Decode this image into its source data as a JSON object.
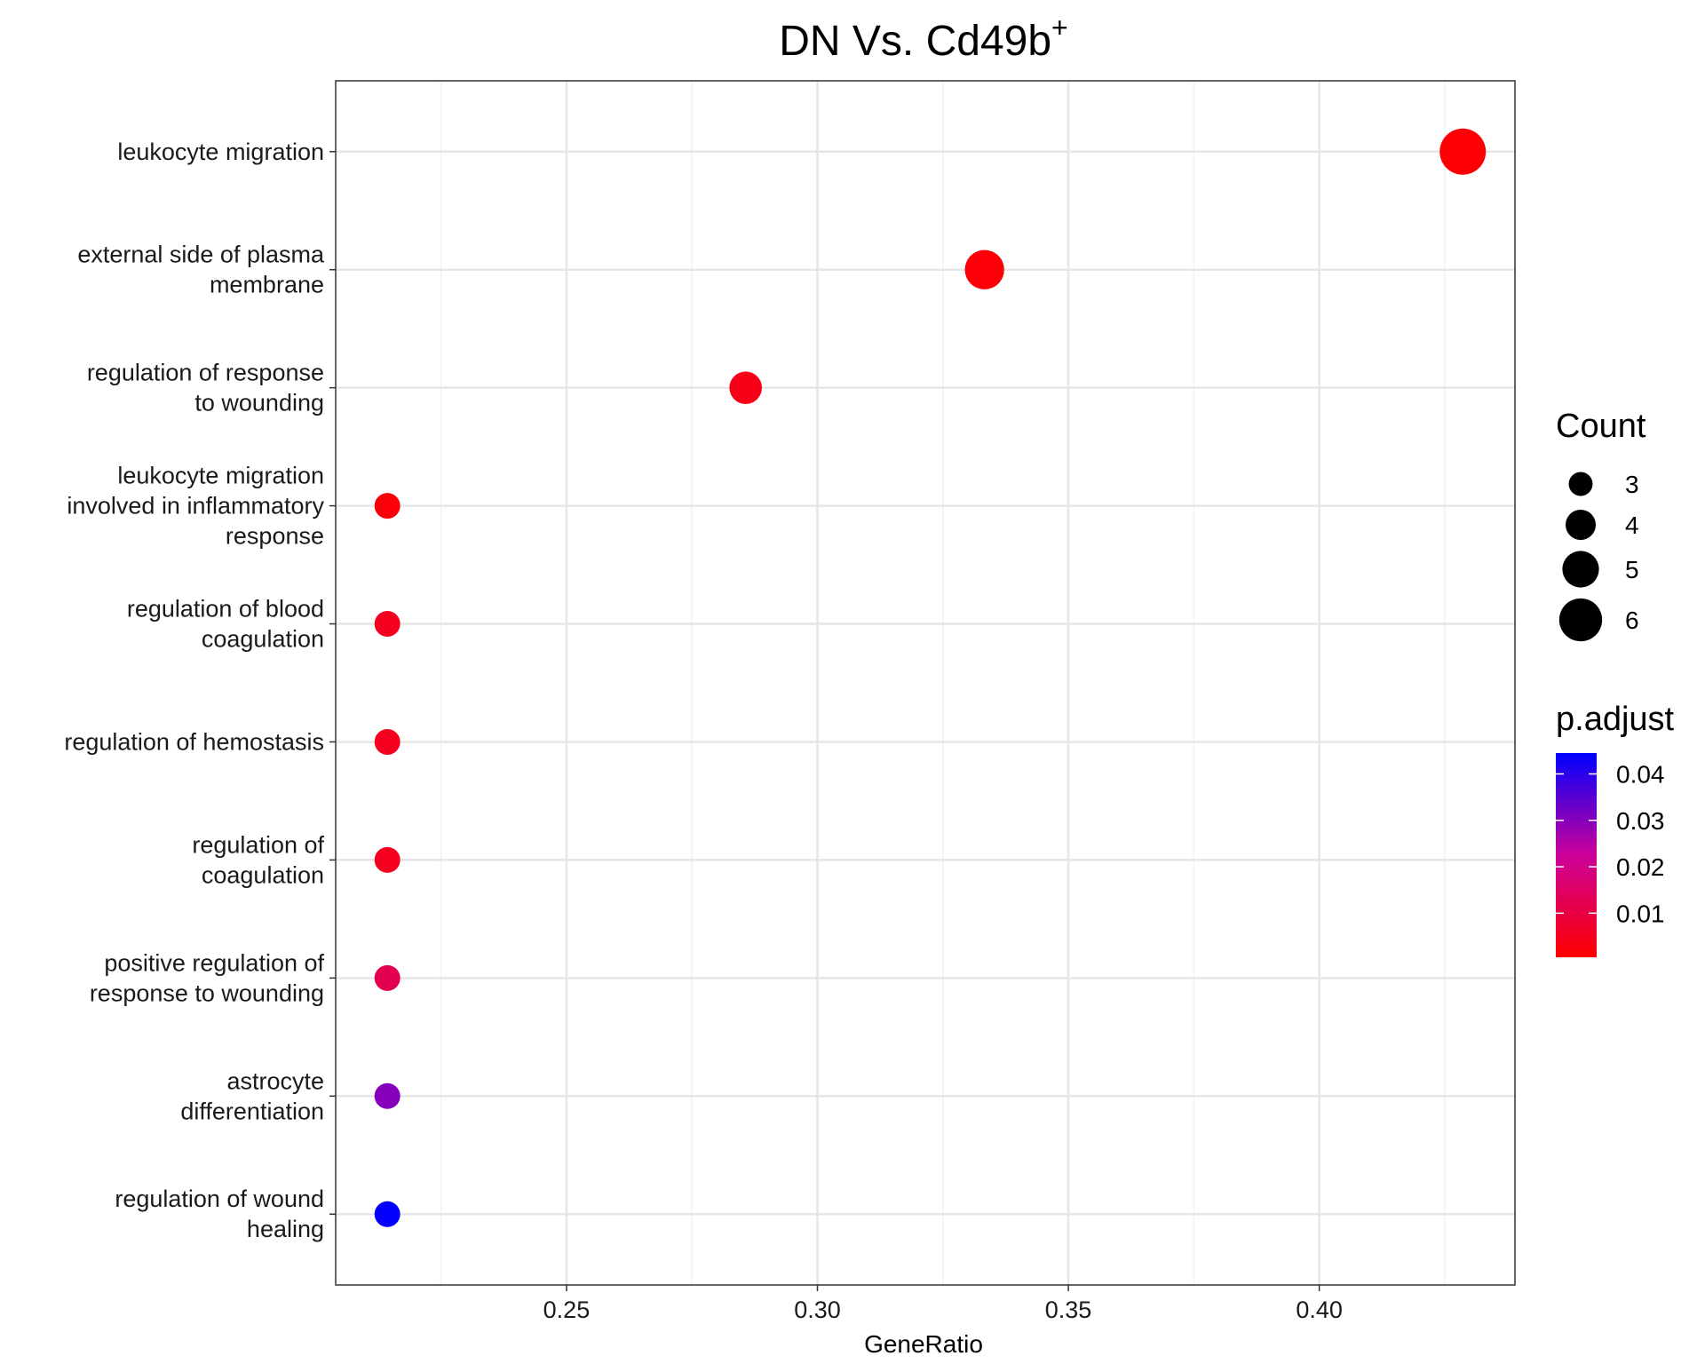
{
  "chart_data": {
    "type": "scatter",
    "title": "DN Vs. Cd49b",
    "title_superscript": "+",
    "xlabel": "GeneRatio",
    "ylabel": "",
    "xlim": [
      0.204,
      0.439
    ],
    "x_ticks": [
      0.25,
      0.3,
      0.35,
      0.4
    ],
    "x_tick_labels": [
      "0.25",
      "0.30",
      "0.35",
      "0.40"
    ],
    "grid": true,
    "categories": [
      "leukocyte migration",
      "external side of plasma membrane",
      "regulation of response to wounding",
      "leukocyte migration involved in inflammatory response",
      "regulation of blood coagulation",
      "regulation of hemostasis",
      "regulation of coagulation",
      "positive regulation of response to wounding",
      "astrocyte differentiation",
      "regulation of wound healing"
    ],
    "category_lines": [
      [
        "leukocyte migration"
      ],
      [
        "external side of plasma",
        "membrane"
      ],
      [
        "regulation of response",
        "to wounding"
      ],
      [
        "leukocyte migration",
        "involved in inflammatory",
        "response"
      ],
      [
        "regulation of blood",
        "coagulation"
      ],
      [
        "regulation of hemostasis"
      ],
      [
        "regulation of",
        "coagulation"
      ],
      [
        "positive regulation of",
        "response to wounding"
      ],
      [
        "astrocyte",
        "differentiation"
      ],
      [
        "regulation of wound",
        "healing"
      ]
    ],
    "points": [
      {
        "term": "leukocyte migration",
        "gene_ratio": 0.4286,
        "count": 6,
        "p_adjust": 0.001
      },
      {
        "term": "external side of plasma membrane",
        "gene_ratio": 0.3333,
        "count": 5,
        "p_adjust": 0.0015
      },
      {
        "term": "regulation of response to wounding",
        "gene_ratio": 0.2857,
        "count": 4,
        "p_adjust": 0.004
      },
      {
        "term": "leukocyte migration involved in inflammatory response",
        "gene_ratio": 0.2143,
        "count": 3,
        "p_adjust": 0.002
      },
      {
        "term": "regulation of blood coagulation",
        "gene_ratio": 0.2143,
        "count": 3,
        "p_adjust": 0.005
      },
      {
        "term": "regulation of hemostasis",
        "gene_ratio": 0.2143,
        "count": 3,
        "p_adjust": 0.005
      },
      {
        "term": "regulation of coagulation",
        "gene_ratio": 0.2143,
        "count": 3,
        "p_adjust": 0.005
      },
      {
        "term": "positive regulation of response to wounding",
        "gene_ratio": 0.2143,
        "count": 3,
        "p_adjust": 0.012
      },
      {
        "term": "astrocyte differentiation",
        "gene_ratio": 0.2143,
        "count": 3,
        "p_adjust": 0.03
      },
      {
        "term": "regulation of wound healing",
        "gene_ratio": 0.2143,
        "count": 3,
        "p_adjust": 0.044
      }
    ],
    "size_legend": {
      "title": "Count",
      "entries": [
        {
          "count": 3,
          "label": "3"
        },
        {
          "count": 4,
          "label": "4"
        },
        {
          "count": 5,
          "label": "5"
        },
        {
          "count": 6,
          "label": "6"
        }
      ]
    },
    "color_legend": {
      "title": "p.adjust",
      "range": [
        0.0005,
        0.0445
      ],
      "low_color": "#ff0000",
      "high_color": "#0000ff",
      "ticks": [
        0.04,
        0.03,
        0.02,
        0.01
      ],
      "tick_labels": [
        "0.04",
        "0.03",
        "0.02",
        "0.01"
      ]
    },
    "legend_position": "right"
  }
}
